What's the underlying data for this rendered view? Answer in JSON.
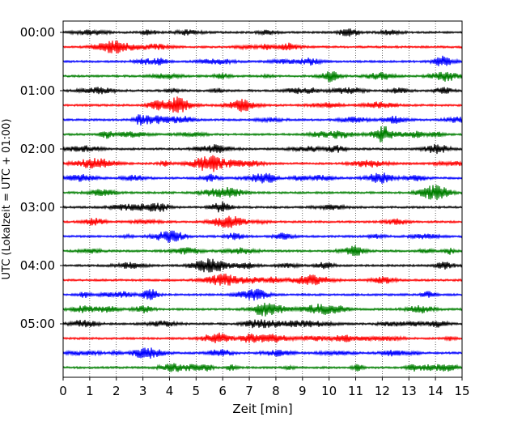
{
  "chart_data": {
    "type": "line",
    "title": "",
    "xlabel": "Zeit  [min]",
    "ylabel": "UTC (Lokalzeit = UTC + 01:00)",
    "xlim": [
      0,
      15
    ],
    "x_ticks": [
      "0",
      "1",
      "2",
      "3",
      "4",
      "5",
      "6",
      "7",
      "8",
      "9",
      "10",
      "11",
      "12",
      "13",
      "14",
      "15"
    ],
    "y_ticks": [
      "00:00",
      "01:00",
      "02:00",
      "03:00",
      "04:00",
      "05:00"
    ],
    "grid": "vertical dotted",
    "trace_interval_minutes": 15,
    "trace_count": 24,
    "trace_colors": [
      "#000000",
      "#ff0000",
      "#0000ff",
      "#007f00"
    ],
    "series": [
      {
        "start": "00:00",
        "color": "#000000"
      },
      {
        "start": "00:15",
        "color": "#ff0000"
      },
      {
        "start": "00:30",
        "color": "#0000ff"
      },
      {
        "start": "00:45",
        "color": "#007f00"
      },
      {
        "start": "01:00",
        "color": "#000000"
      },
      {
        "start": "01:15",
        "color": "#ff0000"
      },
      {
        "start": "01:30",
        "color": "#0000ff"
      },
      {
        "start": "01:45",
        "color": "#007f00"
      },
      {
        "start": "02:00",
        "color": "#000000"
      },
      {
        "start": "02:15",
        "color": "#ff0000"
      },
      {
        "start": "02:30",
        "color": "#0000ff"
      },
      {
        "start": "02:45",
        "color": "#007f00"
      },
      {
        "start": "03:00",
        "color": "#000000"
      },
      {
        "start": "03:15",
        "color": "#ff0000"
      },
      {
        "start": "03:30",
        "color": "#0000ff"
      },
      {
        "start": "03:45",
        "color": "#007f00"
      },
      {
        "start": "04:00",
        "color": "#000000"
      },
      {
        "start": "04:15",
        "color": "#ff0000"
      },
      {
        "start": "04:30",
        "color": "#0000ff"
      },
      {
        "start": "04:45",
        "color": "#007f00"
      },
      {
        "start": "05:00",
        "color": "#000000"
      },
      {
        "start": "05:15",
        "color": "#ff0000"
      },
      {
        "start": "05:30",
        "color": "#0000ff"
      },
      {
        "start": "05:45",
        "color": "#007f00"
      }
    ]
  }
}
